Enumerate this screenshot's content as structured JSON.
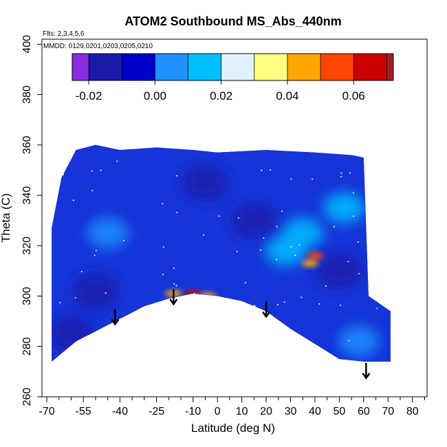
{
  "chart_data": {
    "type": "heatmap",
    "title": "ATOM2 Southbound MS_Abs_440nm",
    "subtitle_flights": "Flts: 2,3,4,5,6",
    "subtitle_dates": "MMDD: 0129,0201,0203,0205,0210",
    "xlabel": "Latitude (deg N)",
    "ylabel": "Theta (C)",
    "xlim": [
      -72,
      86
    ],
    "ylim": [
      260,
      402
    ],
    "x_tick_labels": [
      "-70",
      "-55",
      "-40",
      "-25",
      "-10",
      "0",
      "10",
      "20",
      "30",
      "40",
      "50",
      "60",
      "70",
      "80"
    ],
    "x_tick_values": [
      -70,
      -55,
      -40,
      -25,
      -10,
      0,
      10,
      20,
      30,
      40,
      50,
      60,
      70,
      80
    ],
    "x_minor_ticks": [
      -65,
      -60,
      -50,
      -45,
      -35,
      -30,
      -20,
      -15,
      -5,
      5,
      15,
      25,
      35,
      45,
      55,
      65,
      75,
      85
    ],
    "y_tick_labels": [
      "260",
      "280",
      "300",
      "320",
      "340",
      "360",
      "380",
      "400"
    ],
    "y_tick_values": [
      260,
      280,
      300,
      320,
      340,
      360,
      380,
      400
    ],
    "colorbar": {
      "range": [
        -0.025,
        0.072
      ],
      "tick_labels": [
        "-0.02",
        "0.00",
        "0.02",
        "0.04",
        "0.06"
      ],
      "tick_values": [
        -0.02,
        0.0,
        0.02,
        0.04,
        0.06
      ],
      "segment_edges": [
        -0.025,
        -0.02,
        -0.01,
        0.0,
        0.01,
        0.02,
        0.03,
        0.04,
        0.05,
        0.06,
        0.07,
        0.072
      ],
      "colors": [
        "#8a2be2",
        "#1a1aa8",
        "#0000cd",
        "#1e90ff",
        "#00bfff",
        "#e0f2ff",
        "#ffff80",
        "#ffa500",
        "#ff4500",
        "#cc0000",
        "#a0201e"
      ]
    },
    "arrows_latitude": [
      -42,
      -18,
      20,
      61
    ],
    "filled_region_top": [
      {
        "lat": -68,
        "theta": 327
      },
      {
        "lat": -64,
        "theta": 347
      },
      {
        "lat": -58,
        "theta": 358
      },
      {
        "lat": -50,
        "theta": 360
      },
      {
        "lat": -40,
        "theta": 358
      },
      {
        "lat": -25,
        "theta": 359
      },
      {
        "lat": -10,
        "theta": 358
      },
      {
        "lat": 0,
        "theta": 357
      },
      {
        "lat": 20,
        "theta": 358
      },
      {
        "lat": 40,
        "theta": 357
      },
      {
        "lat": 55,
        "theta": 356
      },
      {
        "lat": 60,
        "theta": 355
      },
      {
        "lat": 62,
        "theta": 300
      },
      {
        "lat": 71,
        "theta": 294
      }
    ],
    "filled_region_bottom": [
      {
        "lat": -68,
        "theta": 274
      },
      {
        "lat": -58,
        "theta": 282
      },
      {
        "lat": -48,
        "theta": 287
      },
      {
        "lat": -40,
        "theta": 291
      },
      {
        "lat": -30,
        "theta": 296
      },
      {
        "lat": -20,
        "theta": 299
      },
      {
        "lat": -10,
        "theta": 301
      },
      {
        "lat": 0,
        "theta": 300
      },
      {
        "lat": 10,
        "theta": 298
      },
      {
        "lat": 20,
        "theta": 294
      },
      {
        "lat": 30,
        "theta": 287
      },
      {
        "lat": 40,
        "theta": 281
      },
      {
        "lat": 50,
        "theta": 275
      },
      {
        "lat": 60,
        "theta": 274
      },
      {
        "lat": 71,
        "theta": 274
      }
    ],
    "hotspots": [
      {
        "lat": -10,
        "theta": 301,
        "value": 0.06
      },
      {
        "lat": -4,
        "theta": 300,
        "value": 0.045
      },
      {
        "lat": -18,
        "theta": 301,
        "value": 0.04
      },
      {
        "lat": 40,
        "theta": 316,
        "value": 0.055
      },
      {
        "lat": 38,
        "theta": 313,
        "value": 0.045
      }
    ],
    "pale_regions": [
      {
        "lat": 35,
        "theta": 325,
        "value": 0.018
      },
      {
        "lat": 28,
        "theta": 318,
        "value": 0.012
      },
      {
        "lat": 52,
        "theta": 335,
        "value": 0.01
      },
      {
        "lat": -45,
        "theta": 325,
        "value": 0.008
      },
      {
        "lat": 58,
        "theta": 282,
        "value": 0.008
      }
    ],
    "dark_regions": [
      {
        "lat": -5,
        "theta": 345,
        "value": -0.015
      },
      {
        "lat": 50,
        "theta": 310,
        "value": -0.018
      },
      {
        "lat": -50,
        "theta": 302,
        "value": -0.02
      },
      {
        "lat": -60,
        "theta": 285,
        "value": -0.02
      },
      {
        "lat": 15,
        "theta": 330,
        "value": -0.012
      }
    ]
  }
}
